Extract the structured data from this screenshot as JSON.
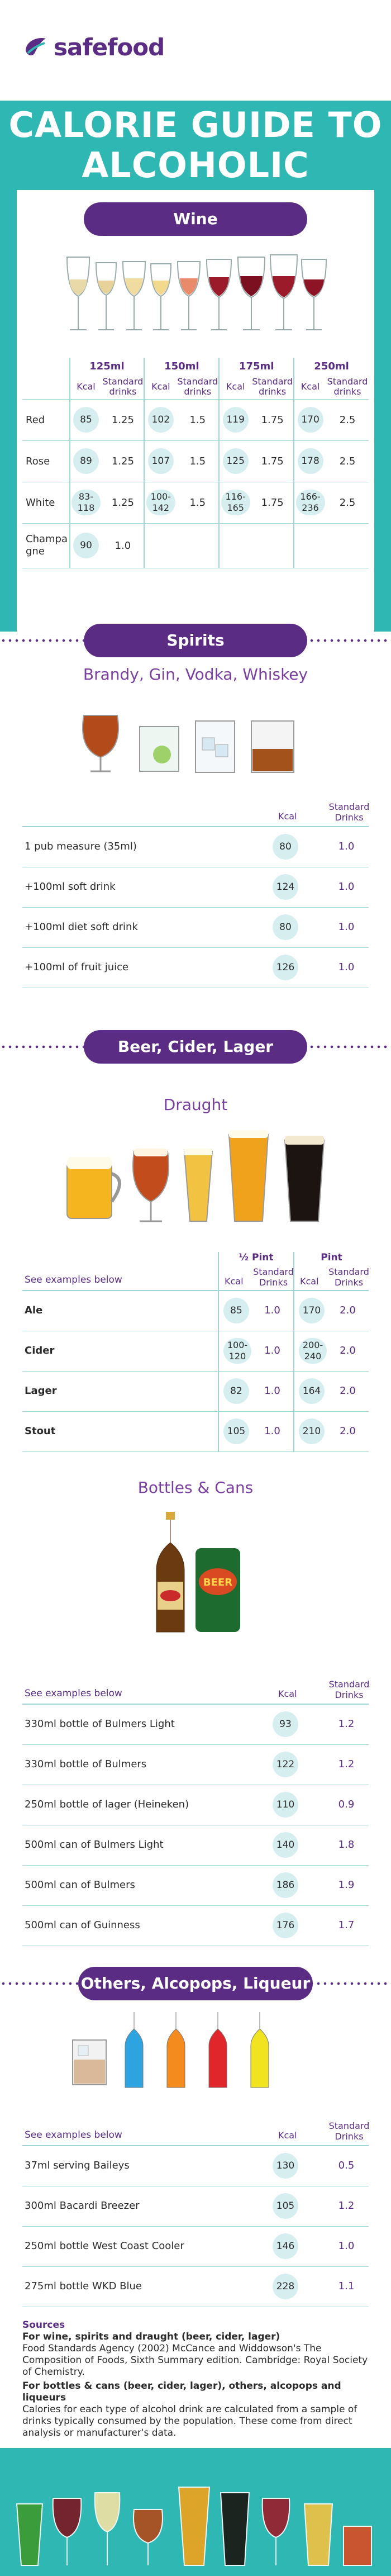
{
  "brand": {
    "logo_text": "safefood"
  },
  "title": {
    "line1": "CALORIE GUIDE TO",
    "line2": "ALCOHOLIC DRINKS"
  },
  "colors": {
    "teal": "#2fb8b3",
    "purple": "#5b2c83",
    "light_teal": "#d7eef0"
  },
  "wine": {
    "heading": "Wine",
    "sizes": [
      "125ml",
      "150ml",
      "175ml",
      "250ml"
    ],
    "col_kcal": "Kcal",
    "col_std": "Standard drinks",
    "rows": [
      {
        "label": "Red",
        "cells": [
          [
            "85",
            "1.25"
          ],
          [
            "102",
            "1.5"
          ],
          [
            "119",
            "1.75"
          ],
          [
            "170",
            "2.5"
          ]
        ]
      },
      {
        "label": "Rose",
        "cells": [
          [
            "89",
            "1.25"
          ],
          [
            "107",
            "1.5"
          ],
          [
            "125",
            "1.75"
          ],
          [
            "178",
            "2.5"
          ]
        ]
      },
      {
        "label": "White",
        "cells": [
          [
            "83-118",
            "1.25"
          ],
          [
            "100-142",
            "1.5"
          ],
          [
            "116-165",
            "1.75"
          ],
          [
            "166-236",
            "2.5"
          ]
        ]
      },
      {
        "label": "Champagne",
        "cells": [
          [
            "90",
            "1.0"
          ]
        ]
      }
    ]
  },
  "spirits": {
    "heading": "Spirits",
    "subheading": "Brandy, Gin, Vodka, Whiskey",
    "col_kcal": "Kcal",
    "col_std": "Standard Drinks",
    "rows": [
      {
        "name": "1 pub measure (35ml)",
        "kcal": "80",
        "std": "1.0"
      },
      {
        "name": "+100ml soft drink",
        "kcal": "124",
        "std": "1.0"
      },
      {
        "name": "+100ml diet soft drink",
        "kcal": "80",
        "std": "1.0"
      },
      {
        "name": "+100ml of fruit juice",
        "kcal": "126",
        "std": "1.0"
      }
    ]
  },
  "beer": {
    "heading": "Beer, Cider, Lager",
    "draught": {
      "subheading": "Draught",
      "see_examples": "See examples below",
      "half_pint": "½ Pint",
      "pint": "Pint",
      "col_kcal": "Kcal",
      "col_std": "Standard Drinks",
      "rows": [
        {
          "name": "Ale",
          "half_kcal": "85",
          "half_std": "1.0",
          "pint_kcal": "170",
          "pint_std": "2.0"
        },
        {
          "name": "Cider",
          "half_kcal": "100-120",
          "half_std": "1.0",
          "pint_kcal": "200-240",
          "pint_std": "2.0"
        },
        {
          "name": "Lager",
          "half_kcal": "82",
          "half_std": "1.0",
          "pint_kcal": "164",
          "pint_std": "2.0"
        },
        {
          "name": "Stout",
          "half_kcal": "105",
          "half_std": "1.0",
          "pint_kcal": "210",
          "pint_std": "2.0"
        }
      ]
    },
    "bottles": {
      "subheading": "Bottles & Cans",
      "see_examples": "See examples below",
      "col_kcal": "Kcal",
      "col_std": "Standard Drinks",
      "can_label": "BEER",
      "rows": [
        {
          "name": "330ml bottle of Bulmers Light",
          "kcal": "93",
          "std": "1.2"
        },
        {
          "name": "330ml bottle of Bulmers",
          "kcal": "122",
          "std": "1.2"
        },
        {
          "name": "250ml bottle of lager (Heineken)",
          "kcal": "110",
          "std": "0.9"
        },
        {
          "name": "500ml can of Bulmers Light",
          "kcal": "140",
          "std": "1.8"
        },
        {
          "name": "500ml can of Bulmers",
          "kcal": "186",
          "std": "1.9"
        },
        {
          "name": "500ml can of Guinness",
          "kcal": "176",
          "std": "1.7"
        }
      ]
    }
  },
  "others": {
    "heading": "Others, Alcopops, Liqueur",
    "see_examples": "See examples below",
    "col_kcal": "Kcal",
    "col_std": "Standard Drinks",
    "rows": [
      {
        "name": "37ml serving Baileys",
        "kcal": "130",
        "std": "0.5"
      },
      {
        "name": "300ml Bacardi Breezer",
        "kcal": "105",
        "std": "1.2"
      },
      {
        "name": "250ml bottle West Coast Cooler",
        "kcal": "146",
        "std": "1.0"
      },
      {
        "name": "275ml bottle WKD Blue",
        "kcal": "228",
        "std": "1.1"
      }
    ]
  },
  "sources": {
    "title": "Sources",
    "sub1": "For wine, spirits and draught (beer, cider, lager)",
    "text1": "Food Standards Agency (2002) McCance and Widdowson's The Composition of Foods, Sixth Summary edition. Cambridge: Royal Society of Chemistry.",
    "sub2": "For bottles & cans (beer, cider, lager), others, alcopops and liqueurs",
    "text2": "Calories for each type of alcohol drink are calculated from a sample of drinks typically consumed by the population. These come from direct analysis or manufacturer's data."
  }
}
